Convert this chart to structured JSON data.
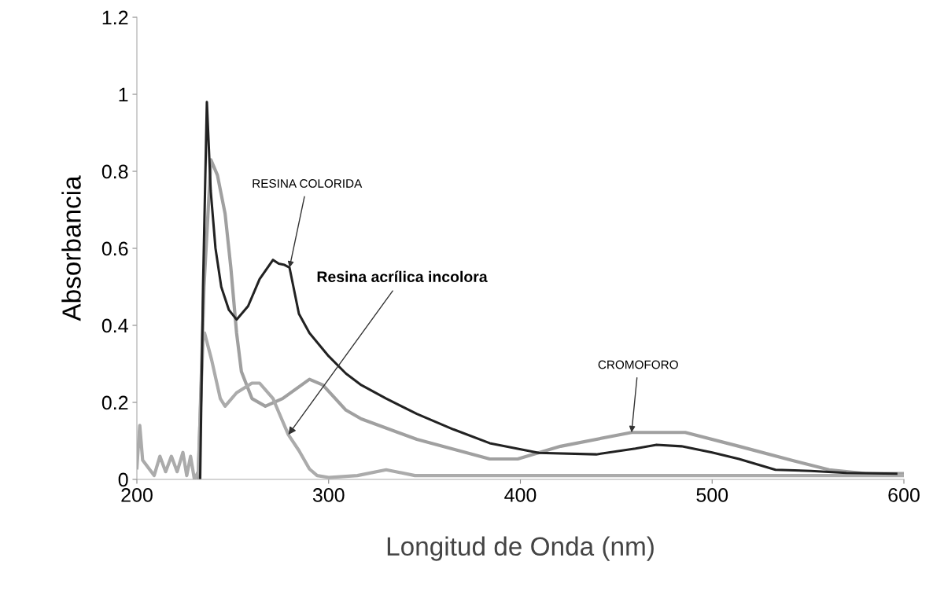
{
  "chart_data": {
    "type": "line",
    "xlabel": "Longitud de Onda (nm)",
    "ylabel": "Absorbancia",
    "xlim": [
      200,
      600
    ],
    "xticks": [
      200,
      300,
      400,
      500,
      600
    ],
    "ylim": [
      0,
      1.2
    ],
    "yticks": [
      0,
      0.2,
      0.4,
      0.6,
      0.8,
      1,
      1.2
    ],
    "grid": false,
    "legend": false,
    "marker": "none",
    "line_style": "solid",
    "series": [
      {
        "color": "#a0a0a0",
        "x": [
          232,
          235,
          238.6,
          242,
          246,
          249,
          252,
          254.5,
          260,
          267,
          276,
          290,
          297,
          309,
          317,
          346,
          384,
          398.6,
          421,
          458,
          486,
          514,
          542,
          561,
          580,
          600
        ],
        "values": [
          0,
          0.5,
          0.83,
          0.79,
          0.69,
          0.55,
          0.38,
          0.28,
          0.21,
          0.19,
          0.21,
          0.26,
          0.245,
          0.18,
          0.157,
          0.104,
          0.053,
          0.053,
          0.086,
          0.122,
          0.122,
          0.086,
          0.049,
          0.025,
          0.015,
          0.015
        ]
      },
      {
        "color": "#ababab",
        "x": [
          200,
          201.5,
          203,
          206,
          209,
          212,
          215,
          218,
          221,
          224,
          226,
          228,
          230,
          232,
          234.5,
          235.3,
          239,
          243.5,
          246,
          252,
          260,
          264,
          271,
          273.5,
          279,
          284.5,
          290,
          294,
          300,
          315,
          330,
          345,
          400,
          500,
          600
        ],
        "values": [
          0.03,
          0.14,
          0.05,
          0.03,
          0.01,
          0.06,
          0.02,
          0.06,
          0.02,
          0.07,
          0.01,
          0.06,
          0.0,
          0.02,
          0.37,
          0.38,
          0.31,
          0.21,
          0.19,
          0.225,
          0.25,
          0.25,
          0.21,
          0.18,
          0.116,
          0.075,
          0.027,
          0.01,
          0.005,
          0.01,
          0.025,
          0.01,
          0.01,
          0.01,
          0.01
        ]
      },
      {
        "color": "#222222",
        "x": [
          233,
          234.5,
          236.5,
          238.5,
          241,
          244,
          248,
          252,
          258,
          264,
          271,
          274,
          277,
          279.6,
          284.5,
          290,
          300,
          309,
          317,
          330,
          346,
          365,
          384,
          409.6,
          439.6,
          460,
          471,
          484,
          500,
          514,
          533,
          551.6,
          570,
          596
        ],
        "values": [
          0,
          0.5,
          0.98,
          0.75,
          0.6,
          0.5,
          0.44,
          0.415,
          0.45,
          0.52,
          0.57,
          0.56,
          0.557,
          0.55,
          0.43,
          0.38,
          0.32,
          0.275,
          0.245,
          0.21,
          0.17,
          0.13,
          0.094,
          0.069,
          0.065,
          0.08,
          0.09,
          0.086,
          0.07,
          0.053,
          0.025,
          0.022,
          0.017,
          0.015
        ]
      }
    ],
    "annotations": [
      {
        "text": "RESINA COLORIDA",
        "x": 279.6,
        "y": 0.55
      },
      {
        "text": "Resina acrílica incolora",
        "x": 279,
        "y": 0.116
      },
      {
        "text": "CROMOFORO",
        "x": 458,
        "y": 0.122
      }
    ]
  }
}
